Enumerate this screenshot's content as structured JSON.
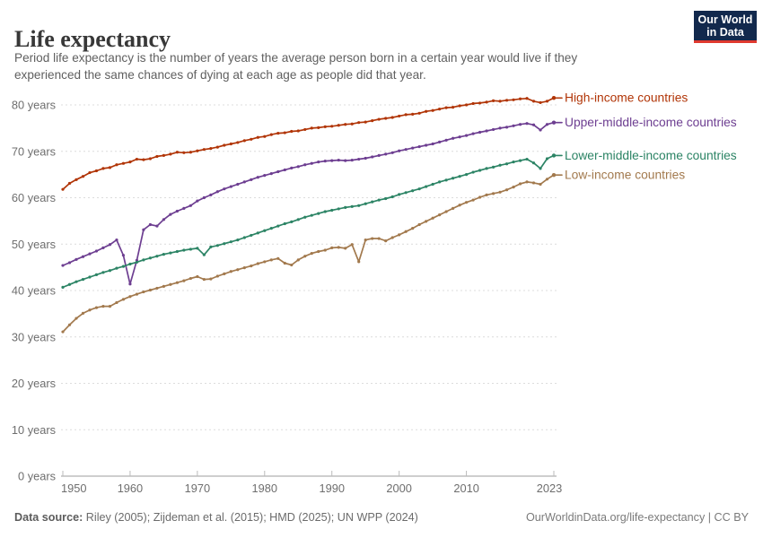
{
  "header": {
    "title": "Life expectancy",
    "subtitle_lines": [
      "Period life expectancy is the number of years the average person born in a certain year would live if they",
      "experienced the same chances of dying at each age as people did that year."
    ],
    "logo": {
      "line1": "Our World",
      "line2": "in Data",
      "bg_color": "#12294d",
      "accent_color": "#e0392f"
    }
  },
  "chart_data": {
    "type": "line",
    "title": "Life expectancy",
    "unit": "years",
    "xlabel": "",
    "ylabel": "",
    "ylim": [
      0,
      80
    ],
    "grid": "dashed-horizontal",
    "legend_position": "right-of-line-ends",
    "years": {
      "start": 1950,
      "end": 2023,
      "step": 1
    },
    "x_ticks": [
      "1950",
      "1960",
      "1970",
      "1980",
      "1990",
      "2000",
      "2010",
      "2023"
    ],
    "y_ticks": [
      {
        "value": 0,
        "label": "0 years"
      },
      {
        "value": 10,
        "label": "10 years"
      },
      {
        "value": 20,
        "label": "20 years"
      },
      {
        "value": 30,
        "label": "30 years"
      },
      {
        "value": 40,
        "label": "40 years"
      },
      {
        "value": 50,
        "label": "50 years"
      },
      {
        "value": 60,
        "label": "60 years"
      },
      {
        "value": 70,
        "label": "70 years"
      },
      {
        "value": 80,
        "label": "80 years"
      }
    ],
    "series": [
      {
        "name": "High-income countries",
        "color": "#b13507",
        "values": [
          61.8,
          63.1,
          63.9,
          64.6,
          65.4,
          65.8,
          66.3,
          66.5,
          67.1,
          67.4,
          67.7,
          68.3,
          68.2,
          68.4,
          68.9,
          69.1,
          69.4,
          69.8,
          69.7,
          69.8,
          70.1,
          70.4,
          70.6,
          70.9,
          71.3,
          71.6,
          71.9,
          72.3,
          72.6,
          73.0,
          73.2,
          73.6,
          73.9,
          74.0,
          74.3,
          74.4,
          74.7,
          75.0,
          75.1,
          75.3,
          75.4,
          75.6,
          75.8,
          75.9,
          76.2,
          76.3,
          76.6,
          76.9,
          77.1,
          77.3,
          77.6,
          77.9,
          78.0,
          78.2,
          78.6,
          78.8,
          79.1,
          79.4,
          79.5,
          79.8,
          80.0,
          80.3,
          80.4,
          80.6,
          80.9,
          80.8,
          81.0,
          81.1,
          81.3,
          81.4,
          80.8,
          80.5,
          80.8,
          81.5
        ]
      },
      {
        "name": "Upper-middle-income countries",
        "color": "#6d3e91",
        "values": [
          45.4,
          46.0,
          46.7,
          47.3,
          47.9,
          48.5,
          49.2,
          49.9,
          50.9,
          47.6,
          41.4,
          46.5,
          53.1,
          54.2,
          53.9,
          55.3,
          56.4,
          57.1,
          57.7,
          58.3,
          59.3,
          60.0,
          60.6,
          61.3,
          61.9,
          62.4,
          62.9,
          63.4,
          63.9,
          64.4,
          64.8,
          65.2,
          65.6,
          66.0,
          66.4,
          66.7,
          67.1,
          67.4,
          67.7,
          67.9,
          68.0,
          68.1,
          68.0,
          68.1,
          68.3,
          68.5,
          68.8,
          69.1,
          69.4,
          69.7,
          70.1,
          70.4,
          70.7,
          71.0,
          71.3,
          71.6,
          72.0,
          72.4,
          72.8,
          73.1,
          73.4,
          73.8,
          74.1,
          74.4,
          74.7,
          75.0,
          75.2,
          75.5,
          75.8,
          76.0,
          75.7,
          74.6,
          75.8,
          76.2
        ]
      },
      {
        "name": "Lower-middle-income countries",
        "color": "#2c8465",
        "values": [
          40.7,
          41.3,
          41.9,
          42.4,
          42.9,
          43.4,
          43.9,
          44.3,
          44.8,
          45.2,
          45.7,
          46.1,
          46.6,
          47.0,
          47.4,
          47.8,
          48.1,
          48.4,
          48.7,
          48.9,
          49.1,
          47.7,
          49.4,
          49.7,
          50.1,
          50.5,
          50.9,
          51.4,
          51.9,
          52.4,
          52.9,
          53.4,
          53.9,
          54.4,
          54.8,
          55.3,
          55.8,
          56.2,
          56.6,
          57.0,
          57.3,
          57.6,
          57.9,
          58.1,
          58.3,
          58.7,
          59.1,
          59.5,
          59.8,
          60.2,
          60.7,
          61.1,
          61.5,
          61.9,
          62.4,
          62.9,
          63.4,
          63.8,
          64.2,
          64.6,
          65.0,
          65.5,
          65.9,
          66.3,
          66.6,
          67.0,
          67.3,
          67.7,
          68.0,
          68.3,
          67.5,
          66.3,
          68.4,
          69.1
        ]
      },
      {
        "name": "Low-income countries",
        "color": "#a2794d",
        "values": [
          31.1,
          32.6,
          34.0,
          35.1,
          35.8,
          36.3,
          36.6,
          36.6,
          37.4,
          38.1,
          38.7,
          39.2,
          39.7,
          40.1,
          40.5,
          40.9,
          41.3,
          41.7,
          42.1,
          42.6,
          43.0,
          42.4,
          42.5,
          43.1,
          43.6,
          44.1,
          44.5,
          44.9,
          45.3,
          45.8,
          46.2,
          46.6,
          46.9,
          45.9,
          45.5,
          46.6,
          47.4,
          48.0,
          48.4,
          48.7,
          49.2,
          49.3,
          49.1,
          49.9,
          46.2,
          50.9,
          51.2,
          51.2,
          50.7,
          51.4,
          52.0,
          52.7,
          53.4,
          54.2,
          54.9,
          55.6,
          56.3,
          57.0,
          57.7,
          58.4,
          59.0,
          59.5,
          60.1,
          60.6,
          60.9,
          61.2,
          61.7,
          62.3,
          63.0,
          63.4,
          63.2,
          62.9,
          64.0,
          64.9
        ]
      }
    ]
  },
  "footer": {
    "datasource_label": "Data source:",
    "datasource_text": " Riley (2005); Zijdeman et al. (2015); HMD (2025); UN WPP (2024)",
    "link_text": "OurWorldinData.org/life-expectancy | CC BY"
  }
}
